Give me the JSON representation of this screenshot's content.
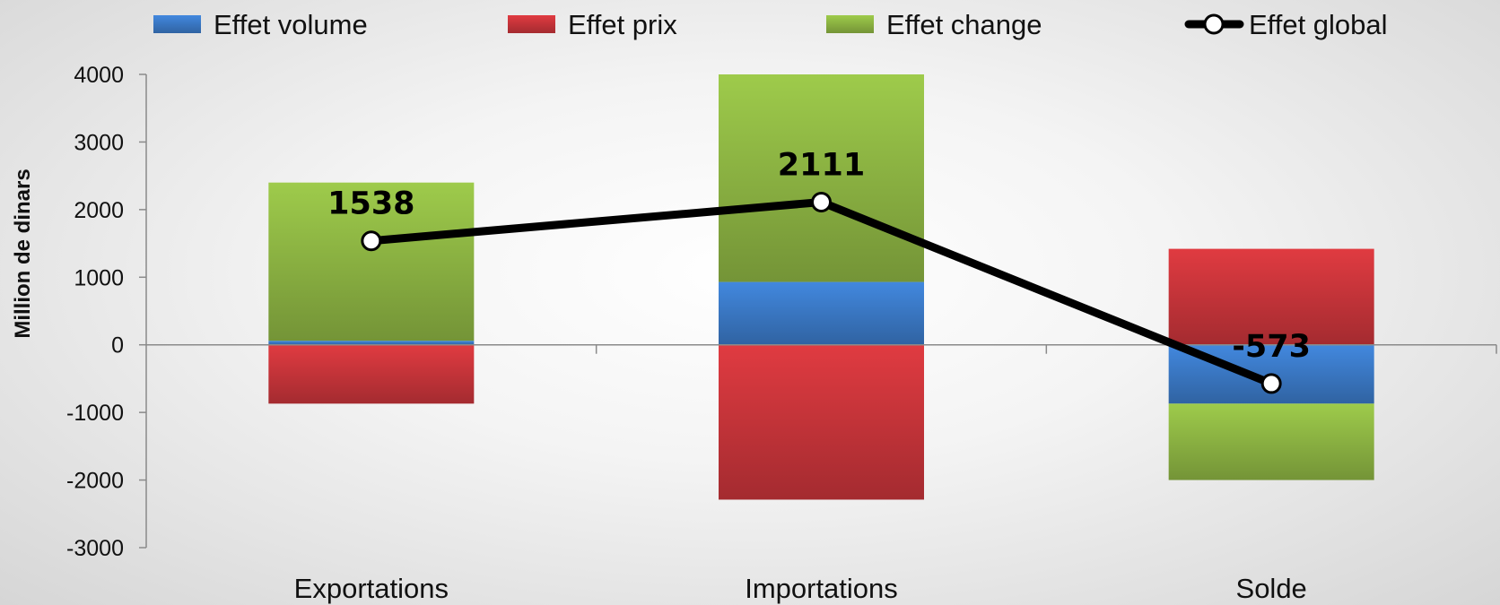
{
  "chart_data": {
    "type": "bar",
    "stacked": true,
    "categories": [
      "Exportations",
      "Importations",
      "Solde"
    ],
    "series": [
      {
        "name": "Effet volume",
        "type": "bar",
        "color": "#3b79c6",
        "values": [
          60,
          930,
          -870
        ]
      },
      {
        "name": "Effet prix",
        "type": "bar",
        "color": "#c8353a",
        "values": [
          -870,
          -2290,
          1420
        ]
      },
      {
        "name": "Effet change",
        "type": "bar",
        "color": "#8db543",
        "values": [
          2340,
          3070,
          -1130
        ]
      },
      {
        "name": "Effet global",
        "type": "line",
        "color": "#000000",
        "values": [
          1538,
          2111,
          -573
        ],
        "data_labels": [
          "1538",
          "2111",
          "-573"
        ]
      }
    ],
    "ylabel": "Million de dinars",
    "ylim": [
      -3000,
      4000
    ],
    "yticks": [
      "4000",
      "3000",
      "2000",
      "1000",
      "0",
      "-1000",
      "-2000",
      "-3000"
    ],
    "legend_position": "top",
    "grid": false
  }
}
